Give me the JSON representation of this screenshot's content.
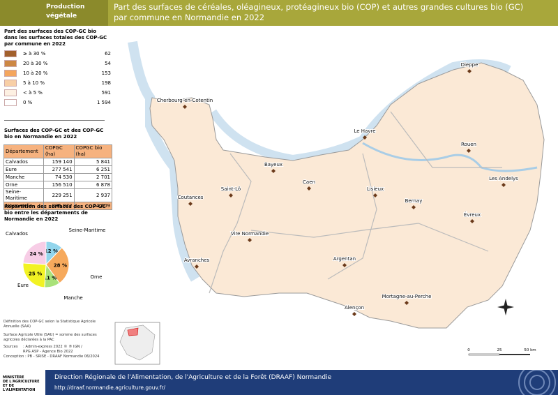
{
  "header": {
    "category": "Production végétale",
    "title_lines": [
      "Part des surfaces de céréales, oléagineux, protéagineux bio (COP) et autres grandes cultures bio (GC)",
      "par commune en Normandie en 2022"
    ]
  },
  "legend": {
    "title": "Part des surfaces des COP-GC bio dans les surfaces totales des COP-GC par  commune en 2022",
    "classes": [
      {
        "label": "≥ à 30 %",
        "count": "62",
        "color": "#a2602c"
      },
      {
        "label": "20 à 30 %",
        "count": "54",
        "color": "#cc8744"
      },
      {
        "label": "10 à 20 %",
        "count": "153",
        "color": "#f4a65e"
      },
      {
        "label": "5 à 10 %",
        "count": "198",
        "color": "#f8cfa6"
      },
      {
        "label": "< à 5 %",
        "count": "591",
        "color": "#fdf0e2"
      },
      {
        "label": "0 %",
        "count": "1 594",
        "color": "#ffffff"
      }
    ]
  },
  "table": {
    "title": "Surfaces des COP-GC et des COP-GC bio en Normandie en 2022",
    "columns": [
      "Département",
      "COPGC (ha)",
      "COPGC bio (ha)"
    ],
    "rows": [
      [
        "Calvados",
        "159 140",
        "5 841"
      ],
      [
        "Eure",
        "277 541",
        "6 251"
      ],
      [
        "Manche",
        "74 530",
        "2 701"
      ],
      [
        "Orne",
        "156 510",
        "6 878"
      ],
      [
        "Seine-Maritime",
        "229 251",
        "2 937"
      ],
      [
        "Normandie",
        "896 972",
        "24 609"
      ]
    ]
  },
  "pie_chart": {
    "type": "pie",
    "title": "Répartition des surfaces des COP-GC bio entre les départements de Normandie en 2022",
    "categories": [
      "Seine-Maritime",
      "Orne",
      "Manche",
      "Eure",
      "Calvados"
    ],
    "values": [
      12,
      28,
      11,
      25,
      24
    ],
    "value_labels": [
      "12 %",
      "28 %",
      "11 %",
      "25 %",
      "24 %"
    ],
    "colors": [
      "#92d5ec",
      "#f6a95c",
      "#a9e27a",
      "#f2f224",
      "#f7cde6"
    ]
  },
  "notes": [
    "Définition des COP-GC selon la Statistique Agricole Annuelle (SAA)",
    "Surface Agricole Utile (SAU) = somme des surfaces agricoles déclarées à la PAC"
  ],
  "sources": {
    "label": "Sources",
    "lines": [
      ": Admin-express 2022 © ® IGN /",
      "RPG ASP - Agence Bio 2022"
    ]
  },
  "conception": "Conception : PB - SRISE - DRAAF Normandie 06/2024",
  "map": {
    "cities": [
      "Dieppe",
      "Cherbourg-en-Cotentin",
      "Le Havre",
      "Rouen",
      "Bayeux",
      "Caen",
      "Saint-Lô",
      "Lisieux",
      "Les Andelys",
      "Bernay",
      "Coutances",
      "Évreux",
      "Vire Normandie",
      "Avranches",
      "Argentan",
      "Alençon",
      "Mortagne-au-Perche"
    ],
    "scale_labels": [
      "0",
      "25",
      "50 km"
    ]
  },
  "footer": {
    "logo_lines": [
      "MINISTÈRE",
      "DE L'AGRICULTURE",
      "ET DE L'ALIMENTATION"
    ],
    "org": "Direction Régionale de l'Alimentation, de l'Agriculture et de la Forêt (DRAAF) Normandie",
    "url": "http://draaf.normandie.agriculture.gouv.fr/"
  }
}
